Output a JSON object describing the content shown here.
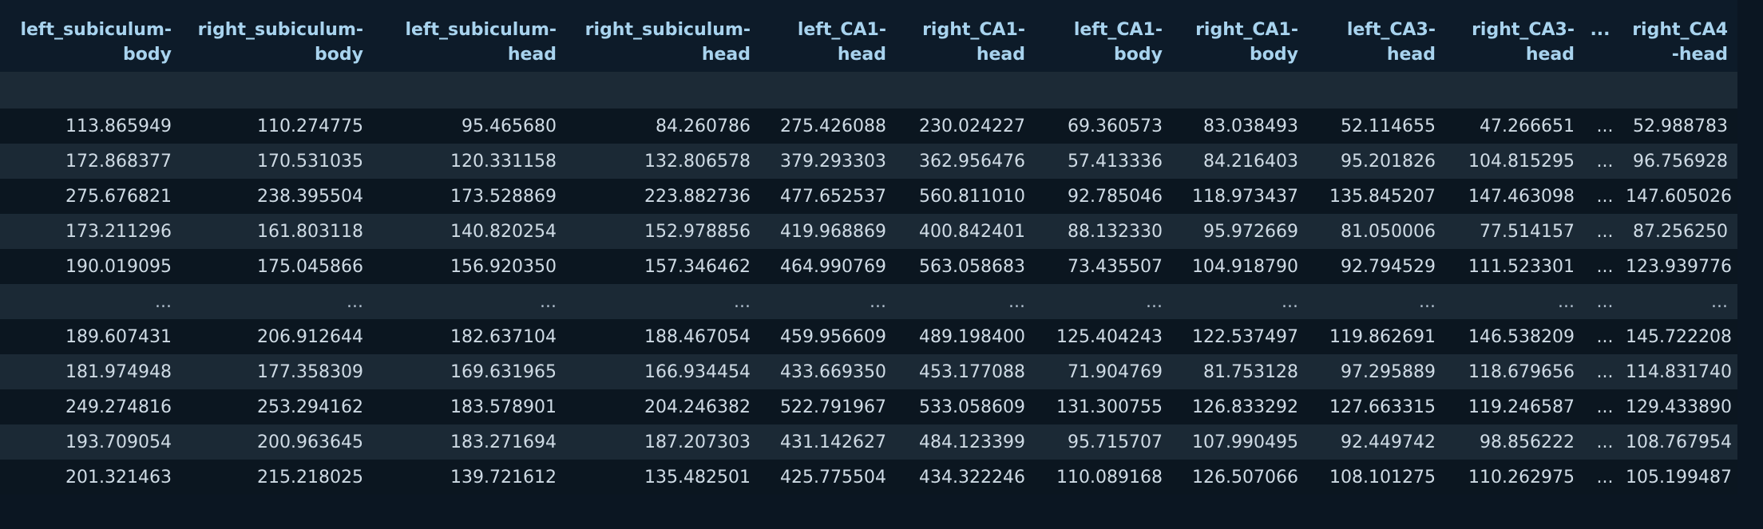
{
  "table": {
    "columns": [
      "left_subiculum-body",
      "right_subiculum-body",
      "left_subiculum-head",
      "right_subiculum-head",
      "left_CA1-head",
      "right_CA1-head",
      "left_CA1-body",
      "right_CA1-body",
      "left_CA3-head",
      "right_CA3-head",
      "...",
      "right_CA4-head"
    ],
    "rows": [
      [
        "113.865949",
        "110.274775",
        "95.465680",
        "84.260786",
        "275.426088",
        "230.024227",
        "69.360573",
        "83.038493",
        "52.114655",
        "47.266651",
        "...",
        "52.988783"
      ],
      [
        "172.868377",
        "170.531035",
        "120.331158",
        "132.806578",
        "379.293303",
        "362.956476",
        "57.413336",
        "84.216403",
        "95.201826",
        "104.815295",
        "...",
        "96.756928"
      ],
      [
        "275.676821",
        "238.395504",
        "173.528869",
        "223.882736",
        "477.652537",
        "560.811010",
        "92.785046",
        "118.973437",
        "135.845207",
        "147.463098",
        "...",
        "147.605026"
      ],
      [
        "173.211296",
        "161.803118",
        "140.820254",
        "152.978856",
        "419.968869",
        "400.842401",
        "88.132330",
        "95.972669",
        "81.050006",
        "77.514157",
        "...",
        "87.256250"
      ],
      [
        "190.019095",
        "175.045866",
        "156.920350",
        "157.346462",
        "464.990769",
        "563.058683",
        "73.435507",
        "104.918790",
        "92.794529",
        "111.523301",
        "...",
        "123.939776"
      ],
      [
        "...",
        "...",
        "...",
        "...",
        "...",
        "...",
        "...",
        "...",
        "...",
        "...",
        "...",
        "..."
      ],
      [
        "189.607431",
        "206.912644",
        "182.637104",
        "188.467054",
        "459.956609",
        "489.198400",
        "125.404243",
        "122.537497",
        "119.862691",
        "146.538209",
        "...",
        "145.722208"
      ],
      [
        "181.974948",
        "177.358309",
        "169.631965",
        "166.934454",
        "433.669350",
        "453.177088",
        "71.904769",
        "81.753128",
        "97.295889",
        "118.679656",
        "...",
        "114.831740"
      ],
      [
        "249.274816",
        "253.294162",
        "183.578901",
        "204.246382",
        "522.791967",
        "533.058609",
        "131.300755",
        "126.833292",
        "127.663315",
        "119.246587",
        "...",
        "129.433890"
      ],
      [
        "193.709054",
        "200.963645",
        "183.271694",
        "187.207303",
        "431.142627",
        "484.123399",
        "95.715707",
        "107.990495",
        "92.449742",
        "98.856222",
        "...",
        "108.767954"
      ],
      [
        "201.321463",
        "215.218025",
        "139.721612",
        "135.482501",
        "425.775504",
        "434.322246",
        "110.089168",
        "126.507066",
        "108.101275",
        "110.262975",
        "...",
        "105.199487"
      ]
    ]
  }
}
